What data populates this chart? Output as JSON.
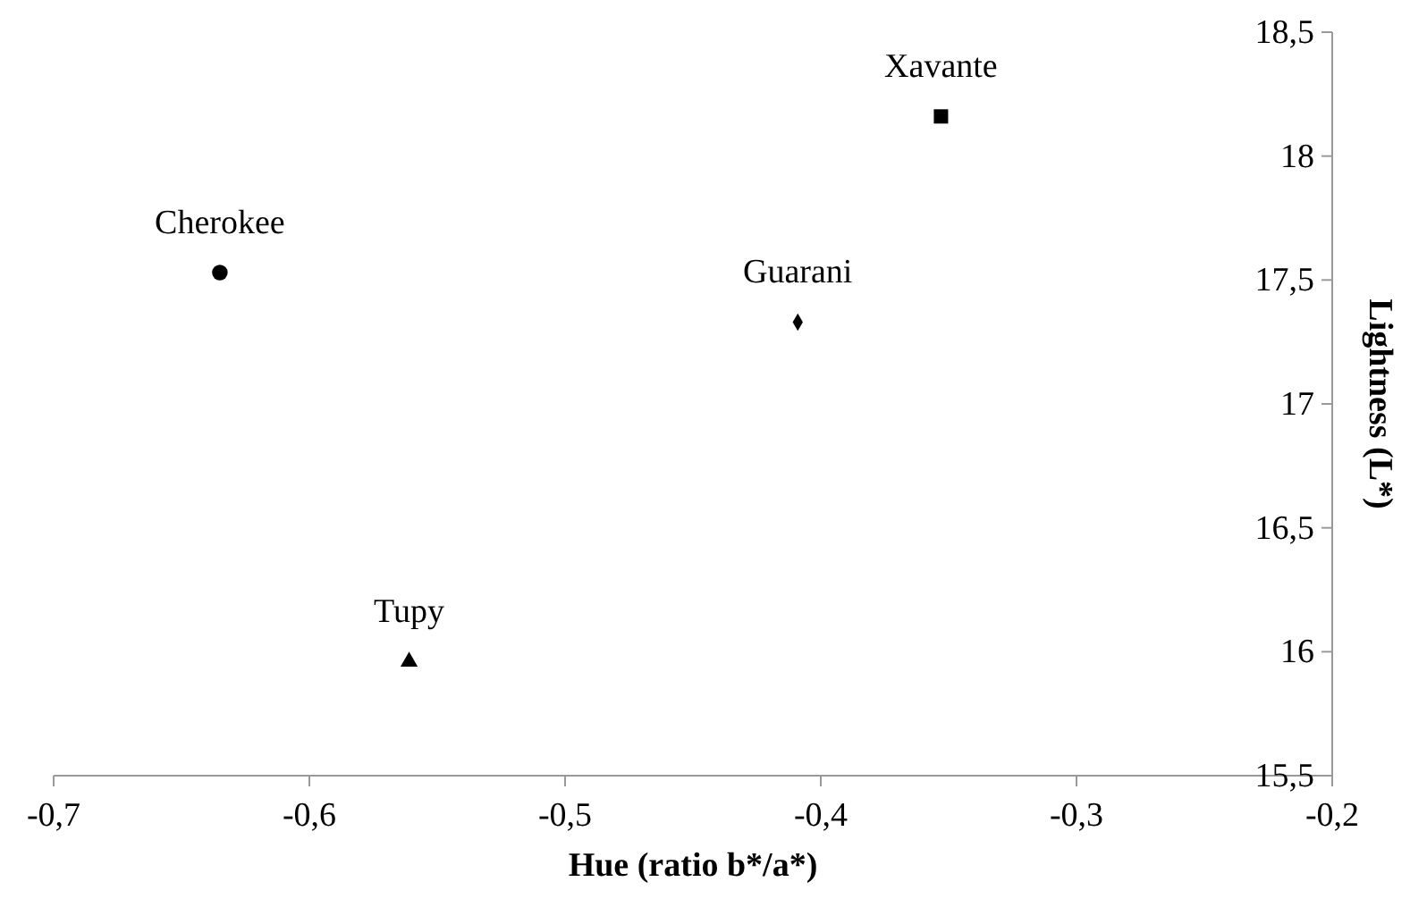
{
  "chart_data": {
    "type": "scatter",
    "xlabel": "Hue (ratio b*/a*)",
    "ylabel": "Lightness (L*)",
    "xlim": [
      -0.7,
      -0.2
    ],
    "ylim": [
      15.5,
      18.5
    ],
    "xticks": [
      {
        "value": -0.7,
        "label": "-0,7"
      },
      {
        "value": -0.6,
        "label": "-0,6"
      },
      {
        "value": -0.5,
        "label": "-0,5"
      },
      {
        "value": -0.4,
        "label": "-0,4"
      },
      {
        "value": -0.3,
        "label": "-0,3"
      },
      {
        "value": -0.2,
        "label": "-0,2"
      }
    ],
    "yticks": [
      {
        "value": 15.5,
        "label": "15,5"
      },
      {
        "value": 16,
        "label": "16"
      },
      {
        "value": 16.5,
        "label": "16,5"
      },
      {
        "value": 17,
        "label": "17"
      },
      {
        "value": 17.5,
        "label": "17,5"
      },
      {
        "value": 18,
        "label": "18"
      },
      {
        "value": 18.5,
        "label": "18,5"
      }
    ],
    "grid": false,
    "legend": false,
    "series": [
      {
        "name": "Cherokee",
        "color": "#000000",
        "marker": "circle",
        "x": [
          -0.635
        ],
        "values": [
          17.53
        ]
      },
      {
        "name": "Xavante",
        "color": "#000000",
        "marker": "square",
        "x": [
          -0.353
        ],
        "values": [
          18.16
        ]
      },
      {
        "name": "Guarani",
        "color": "#000000",
        "marker": "diamond",
        "x": [
          -0.409
        ],
        "values": [
          17.33
        ]
      },
      {
        "name": "Tupy",
        "color": "#000000",
        "marker": "triangle",
        "x": [
          -0.561
        ],
        "values": [
          15.96
        ]
      }
    ]
  }
}
